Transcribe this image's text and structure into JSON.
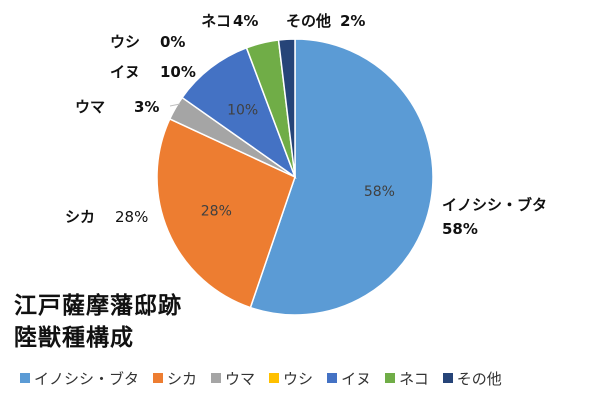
{
  "chart_data": {
    "type": "pie",
    "title_lines": [
      "江戸薩摩藩邸跡",
      "陸獣種構成"
    ],
    "slices": [
      {
        "name": "イノシシ・ブタ",
        "value": 58,
        "color": "#5b9bd5",
        "outside_label": "イノシシ・ブタ",
        "outside_value": "58%",
        "inside_label": "58%"
      },
      {
        "name": "シカ",
        "value": 28,
        "color": "#ed7d31",
        "outside_label": "シカ",
        "outside_value": "28%",
        "inside_label": "28%"
      },
      {
        "name": "ウマ",
        "value": 3,
        "color": "#a5a5a5",
        "outside_label": "ウマ",
        "outside_value": "3%",
        "inside_label": ""
      },
      {
        "name": "ウシ",
        "value": 0,
        "color": "#ffc000",
        "outside_label": "ウシ",
        "outside_value": "0%",
        "inside_label": ""
      },
      {
        "name": "イヌ",
        "value": 10,
        "color": "#4472c4",
        "outside_label": "イヌ",
        "outside_value": "10%",
        "inside_label": "10%"
      },
      {
        "name": "ネコ",
        "value": 4,
        "color": "#70ad47",
        "outside_label": "ネコ",
        "outside_value": "4%",
        "inside_label": ""
      },
      {
        "name": "その他",
        "value": 2,
        "color": "#264478",
        "outside_label": "その他",
        "outside_value": "2%",
        "inside_label": ""
      }
    ],
    "legend_position": "bottom"
  }
}
